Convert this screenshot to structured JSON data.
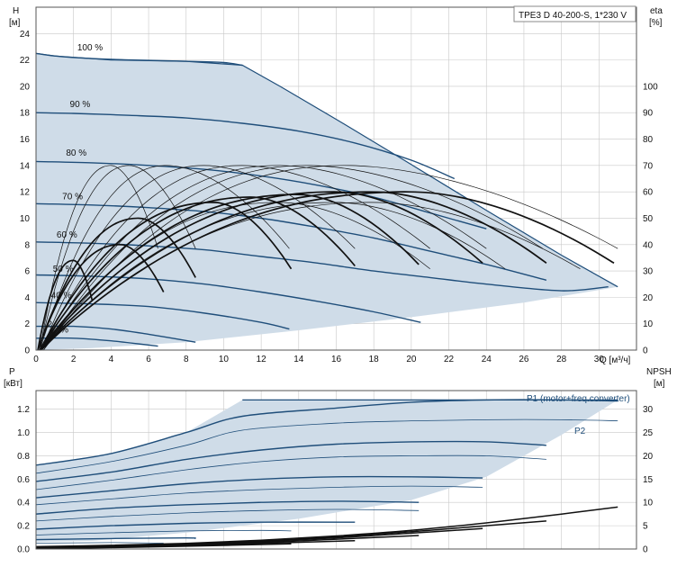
{
  "colors": {
    "envelope_fill": "#cfdce8",
    "speed_curve": "#1f4e7a",
    "eta_curve": "#111111",
    "grid": "#c8c8c8",
    "axis": "#555555",
    "accent_label": "#1f4e7a"
  },
  "title": "TPE3 D 40-200-S, 1*230 V",
  "chart_data": [
    {
      "type": "line",
      "panel": "head-efficiency",
      "title": "TPE3 D 40-200-S, 1*230 V",
      "xlabel": "Q [м³/ч]",
      "ylabel": "H",
      "ylabel_unit": "[м]",
      "ylabel_right": "eta",
      "ylabel_right_unit": "[%]",
      "xlim": [
        0,
        32
      ],
      "ylim": [
        0,
        26
      ],
      "y2lim": [
        0,
        130
      ],
      "x_ticks": [
        0,
        2,
        4,
        6,
        8,
        10,
        12,
        14,
        16,
        18,
        20,
        22,
        24,
        26,
        28,
        30
      ],
      "y_ticks": [
        0,
        2,
        4,
        6,
        8,
        10,
        12,
        14,
        16,
        18,
        20,
        22,
        24
      ],
      "y2_ticks": [
        0,
        10,
        20,
        30,
        40,
        50,
        60,
        70,
        80,
        90,
        100
      ],
      "grid": true,
      "envelope": [
        [
          0,
          22.5
        ],
        [
          1,
          22.3
        ],
        [
          4,
          22.0
        ],
        [
          8,
          21.9
        ],
        [
          11,
          21.6
        ],
        [
          13,
          20.0
        ],
        [
          16,
          17.5
        ],
        [
          19.5,
          14.5
        ],
        [
          24,
          10.6
        ],
        [
          28,
          7.2
        ],
        [
          31,
          4.8
        ],
        [
          26,
          3.6
        ],
        [
          20,
          2.5
        ],
        [
          14,
          1.5
        ],
        [
          8,
          0.6
        ],
        [
          3,
          0.15
        ],
        [
          0,
          0
        ]
      ],
      "speed_series": [
        {
          "name": "100 %",
          "x": [
            0,
            1,
            3,
            5,
            8,
            10,
            11
          ],
          "y": [
            22.5,
            22.3,
            22.1,
            22.0,
            21.9,
            21.8,
            21.6
          ]
        },
        {
          "name": "90 %",
          "x": [
            0,
            2,
            5,
            8,
            11,
            14,
            17,
            20,
            22.3
          ],
          "y": [
            18.0,
            17.95,
            17.8,
            17.6,
            17.2,
            16.6,
            15.7,
            14.4,
            13.0
          ]
        },
        {
          "name": "80 %",
          "x": [
            0,
            3,
            6,
            9,
            12,
            15,
            18,
            21,
            24
          ],
          "y": [
            14.3,
            14.2,
            14.0,
            13.7,
            13.2,
            12.5,
            11.6,
            10.4,
            9.2
          ]
        },
        {
          "name": "70 %",
          "x": [
            0,
            3,
            6,
            9,
            12,
            15,
            18,
            21,
            24,
            27.2
          ],
          "y": [
            11.1,
            11.0,
            10.8,
            10.5,
            10.0,
            9.3,
            8.5,
            7.5,
            6.5,
            5.3
          ]
        },
        {
          "name": "60 %",
          "x": [
            0,
            3,
            6,
            9,
            12,
            15,
            18,
            21,
            24,
            28,
            30.5
          ],
          "y": [
            8.2,
            8.1,
            7.9,
            7.6,
            7.1,
            6.6,
            6.0,
            5.5,
            5.0,
            4.5,
            4.8
          ]
        },
        {
          "name": "50 %",
          "x": [
            0,
            3,
            6,
            9,
            12,
            15,
            18,
            20.5
          ],
          "y": [
            5.7,
            5.6,
            5.4,
            5.0,
            4.4,
            3.7,
            2.9,
            2.1
          ]
        },
        {
          "name": "40 %",
          "x": [
            0,
            3,
            6,
            9,
            12,
            13.5
          ],
          "y": [
            3.6,
            3.5,
            3.3,
            2.8,
            2.1,
            1.6
          ]
        },
        {
          "name": "",
          "x": [
            0,
            2,
            4,
            6,
            8.5
          ],
          "y": [
            1.8,
            1.8,
            1.6,
            1.2,
            0.6
          ]
        },
        {
          "name": "",
          "x": [
            0,
            2,
            4,
            6.5
          ],
          "y": [
            0.9,
            0.9,
            0.7,
            0.3
          ]
        }
      ],
      "speed_labels": [
        {
          "text": "100 %",
          "x": 2.2,
          "y": 22.6
        },
        {
          "text": "90 %",
          "x": 1.8,
          "y": 18.3
        },
        {
          "text": "80 %",
          "x": 1.6,
          "y": 14.6
        },
        {
          "text": "70 %",
          "x": 1.4,
          "y": 11.3
        },
        {
          "text": "60 %",
          "x": 1.1,
          "y": 8.4
        },
        {
          "text": "50 %",
          "x": 0.9,
          "y": 5.8
        },
        {
          "text": "40 %",
          "x": 0.8,
          "y": 3.8
        },
        {
          "text": "2",
          "x": 0.6,
          "y": 1.6
        },
        {
          "text": "%",
          "x": 1.3,
          "y": 1.2
        }
      ],
      "eta_series_thin": [
        {
          "q0": 0.4,
          "q1": 31.0,
          "peak": 70,
          "qp": 16.5
        },
        {
          "q0": 0.4,
          "q1": 27.0,
          "peak": 70,
          "qp": 14.5
        },
        {
          "q0": 0.3,
          "q1": 24.0,
          "peak": 70,
          "qp": 13.0
        },
        {
          "q0": 0.3,
          "q1": 21.0,
          "peak": 70,
          "qp": 11.0
        },
        {
          "q0": 0.3,
          "q1": 17.0,
          "peak": 70,
          "qp": 9.0
        },
        {
          "q0": 0.2,
          "q1": 13.5,
          "peak": 70,
          "qp": 7.0
        },
        {
          "q0": 0.2,
          "q1": 8.5,
          "peak": 70,
          "qp": 5.0
        },
        {
          "q0": 0.2,
          "q1": 6.5,
          "peak": 70,
          "qp": 4.0
        },
        {
          "q0": 0.3,
          "q1": 29.0,
          "peak": 56,
          "qp": 18.0
        },
        {
          "q0": 0.3,
          "q1": 25.0,
          "peak": 56,
          "qp": 16.0
        },
        {
          "q0": 0.3,
          "q1": 21.0,
          "peak": 56,
          "qp": 13.0
        }
      ],
      "eta_series_thick": [
        {
          "q0": 0.2,
          "q1": 30.8,
          "peak": 60,
          "qp": 20.0
        },
        {
          "q0": 0.2,
          "q1": 27.2,
          "peak": 60,
          "qp": 18.0
        },
        {
          "q0": 0.2,
          "q1": 23.8,
          "peak": 60,
          "qp": 16.0
        },
        {
          "q0": 0.2,
          "q1": 20.4,
          "peak": 59,
          "qp": 14.0
        },
        {
          "q0": 0.2,
          "q1": 17.0,
          "peak": 58,
          "qp": 11.5
        },
        {
          "q0": 0.2,
          "q1": 13.6,
          "peak": 56,
          "qp": 9.5
        },
        {
          "q0": 0.1,
          "q1": 8.5,
          "peak": 50,
          "qp": 5.5
        },
        {
          "q0": 0.1,
          "q1": 6.8,
          "peak": 40,
          "qp": 4.5
        },
        {
          "q0": 0.1,
          "q1": 3.0,
          "peak": 34,
          "qp": 2.0
        }
      ]
    },
    {
      "type": "line",
      "panel": "power-npsh",
      "xlabel": "",
      "ylabel": "P",
      "ylabel_unit": "[кВт]",
      "ylabel_right": "NPSH",
      "ylabel_right_unit": "[м]",
      "xlim": [
        0,
        32
      ],
      "ylim": [
        0,
        1.36
      ],
      "y2lim": [
        0,
        34
      ],
      "y_ticks": [
        0.0,
        0.2,
        0.4,
        0.6,
        0.8,
        1.0,
        1.2
      ],
      "y2_ticks": [
        0,
        5,
        10,
        15,
        20,
        25,
        30
      ],
      "grid": true,
      "envelope": [
        [
          0,
          0.72
        ],
        [
          4,
          0.82
        ],
        [
          8,
          1.0
        ],
        [
          11,
          1.28
        ],
        [
          31,
          1.28
        ],
        [
          28,
          0.98
        ],
        [
          24,
          0.62
        ],
        [
          20,
          0.42
        ],
        [
          14,
          0.26
        ],
        [
          8,
          0.14
        ],
        [
          3,
          0.07
        ],
        [
          0,
          0.06
        ]
      ],
      "legend_labels": [
        {
          "text": "P1 (motor+freq.converter)",
          "x": 19.0,
          "y": 1.3
        },
        {
          "text": "P2",
          "x": 30.5,
          "y": 1.03
        }
      ],
      "power_series": [
        {
          "x": [
            0,
            4,
            8,
            11,
            16,
            20,
            24,
            28,
            31
          ],
          "y": [
            0.72,
            0.82,
            1.0,
            1.14,
            1.21,
            1.26,
            1.28,
            1.28,
            1.27
          ]
        },
        {
          "x": [
            0,
            4,
            8,
            11,
            16,
            20,
            24,
            28,
            31
          ],
          "y": [
            0.65,
            0.75,
            0.89,
            1.02,
            1.08,
            1.1,
            1.11,
            1.11,
            1.1
          ]
        },
        {
          "x": [
            0,
            4,
            8,
            12,
            16,
            20,
            24,
            27.2
          ],
          "y": [
            0.58,
            0.66,
            0.77,
            0.85,
            0.9,
            0.92,
            0.92,
            0.89
          ]
        },
        {
          "x": [
            0,
            4,
            8,
            12,
            16,
            20,
            24,
            27.2
          ],
          "y": [
            0.51,
            0.59,
            0.68,
            0.75,
            0.79,
            0.8,
            0.8,
            0.77
          ]
        },
        {
          "x": [
            0,
            4,
            8,
            12,
            16,
            20,
            23.8
          ],
          "y": [
            0.44,
            0.5,
            0.56,
            0.6,
            0.62,
            0.62,
            0.61
          ]
        },
        {
          "x": [
            0,
            4,
            8,
            12,
            16,
            20,
            23.8
          ],
          "y": [
            0.38,
            0.43,
            0.48,
            0.51,
            0.53,
            0.54,
            0.53
          ]
        },
        {
          "x": [
            0,
            4,
            8,
            12,
            16,
            20.4
          ],
          "y": [
            0.3,
            0.35,
            0.38,
            0.4,
            0.41,
            0.4
          ]
        },
        {
          "x": [
            0,
            4,
            8,
            12,
            16,
            20.4
          ],
          "y": [
            0.24,
            0.28,
            0.31,
            0.33,
            0.34,
            0.33
          ]
        },
        {
          "x": [
            0,
            4,
            8,
            12,
            17.0
          ],
          "y": [
            0.17,
            0.2,
            0.22,
            0.23,
            0.23
          ]
        },
        {
          "x": [
            0,
            4,
            8,
            12,
            13.6
          ],
          "y": [
            0.12,
            0.14,
            0.155,
            0.16,
            0.155
          ]
        },
        {
          "x": [
            0,
            4,
            8,
            8.5
          ],
          "y": [
            0.08,
            0.09,
            0.095,
            0.09
          ]
        },
        {
          "x": [
            0,
            4,
            6.8
          ],
          "y": [
            0.05,
            0.055,
            0.05
          ]
        }
      ],
      "npsh_series": [
        {
          "x": [
            0,
            4,
            8,
            12,
            16,
            20,
            24,
            28,
            31
          ],
          "y": [
            0.5,
            0.8,
            1.2,
            1.9,
            2.8,
            4.0,
            5.6,
            7.5,
            9.0
          ]
        },
        {
          "x": [
            0,
            4,
            8,
            12,
            16,
            20,
            24,
            27.2
          ],
          "y": [
            0.4,
            0.7,
            1.1,
            1.7,
            2.6,
            3.7,
            5.0,
            6.0
          ]
        },
        {
          "x": [
            0,
            4,
            8,
            12,
            16,
            20,
            23.8
          ],
          "y": [
            0.3,
            0.6,
            1.0,
            1.6,
            2.4,
            3.4,
            4.4
          ]
        },
        {
          "x": [
            0,
            4,
            8,
            12,
            16,
            20.4
          ],
          "y": [
            0.2,
            0.5,
            0.9,
            1.4,
            2.1,
            2.9
          ]
        },
        {
          "x": [
            0,
            4,
            8,
            12,
            17.0
          ],
          "y": [
            0.2,
            0.4,
            0.8,
            1.2,
            1.8
          ]
        },
        {
          "x": [
            0,
            4,
            8,
            13.6
          ],
          "y": [
            0.1,
            0.3,
            0.6,
            1.1
          ]
        }
      ]
    }
  ]
}
